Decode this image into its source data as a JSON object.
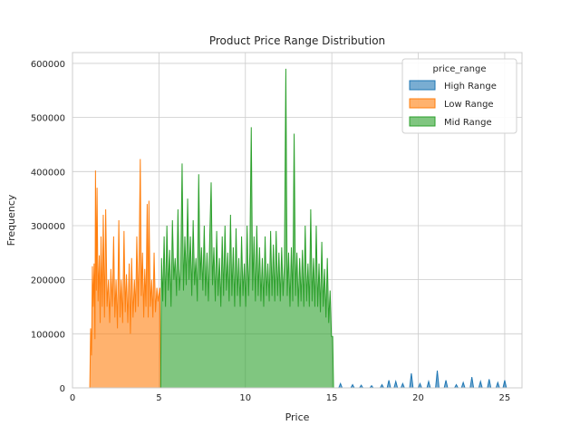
{
  "chart_data": {
    "type": "area",
    "title": "Product Price Range Distribution",
    "xlabel": "Price",
    "ylabel": "Frequency",
    "xlim": [
      0,
      26
    ],
    "ylim": [
      0,
      620000
    ],
    "x_ticks": [
      0,
      5,
      10,
      15,
      20,
      25
    ],
    "y_ticks": [
      0,
      100000,
      200000,
      300000,
      400000,
      500000,
      600000
    ],
    "x_tick_labels": [
      "0",
      "5",
      "10",
      "15",
      "20",
      "25"
    ],
    "y_tick_labels": [
      "0",
      "100000",
      "200000",
      "300000",
      "400000",
      "500000",
      "600000"
    ],
    "grid": true,
    "legend": {
      "title": "price_range",
      "position": "top-right",
      "entries": [
        "High Range",
        "Low Range",
        "Mid Range"
      ]
    },
    "series": [
      {
        "name": "Low Range",
        "color": "#ff7f0e",
        "points": [
          [
            1.0,
            0
          ],
          [
            1.05,
            110000
          ],
          [
            1.1,
            60000
          ],
          [
            1.15,
            225000
          ],
          [
            1.2,
            150000
          ],
          [
            1.25,
            230000
          ],
          [
            1.3,
            90000
          ],
          [
            1.33,
            402000
          ],
          [
            1.38,
            180000
          ],
          [
            1.42,
            370000
          ],
          [
            1.48,
            160000
          ],
          [
            1.55,
            245000
          ],
          [
            1.6,
            120000
          ],
          [
            1.65,
            280000
          ],
          [
            1.72,
            150000
          ],
          [
            1.78,
            320000
          ],
          [
            1.85,
            130000
          ],
          [
            1.92,
            330000
          ],
          [
            2.0,
            150000
          ],
          [
            2.08,
            200000
          ],
          [
            2.15,
            120000
          ],
          [
            2.22,
            220000
          ],
          [
            2.3,
            150000
          ],
          [
            2.38,
            280000
          ],
          [
            2.45,
            130000
          ],
          [
            2.52,
            200000
          ],
          [
            2.6,
            110000
          ],
          [
            2.68,
            310000
          ],
          [
            2.75,
            130000
          ],
          [
            2.82,
            200000
          ],
          [
            2.9,
            120000
          ],
          [
            2.98,
            290000
          ],
          [
            3.05,
            140000
          ],
          [
            3.12,
            210000
          ],
          [
            3.2,
            120000
          ],
          [
            3.28,
            230000
          ],
          [
            3.35,
            100000
          ],
          [
            3.42,
            240000
          ],
          [
            3.5,
            130000
          ],
          [
            3.58,
            200000
          ],
          [
            3.65,
            140000
          ],
          [
            3.72,
            280000
          ],
          [
            3.8,
            150000
          ],
          [
            3.86,
            260000
          ],
          [
            3.92,
            423000
          ],
          [
            3.98,
            170000
          ],
          [
            4.05,
            250000
          ],
          [
            4.12,
            130000
          ],
          [
            4.18,
            220000
          ],
          [
            4.25,
            150000
          ],
          [
            4.32,
            340000
          ],
          [
            4.38,
            130000
          ],
          [
            4.42,
            346000
          ],
          [
            4.5,
            150000
          ],
          [
            4.58,
            200000
          ],
          [
            4.65,
            130000
          ],
          [
            4.72,
            250000
          ],
          [
            4.8,
            140000
          ],
          [
            4.88,
            185000
          ],
          [
            4.95,
            160000
          ],
          [
            5.05,
            185000
          ],
          [
            5.1,
            0
          ]
        ]
      },
      {
        "name": "Mid Range",
        "color": "#2ca02c",
        "points": [
          [
            5.1,
            0
          ],
          [
            5.15,
            240000
          ],
          [
            5.22,
            160000
          ],
          [
            5.3,
            280000
          ],
          [
            5.38,
            150000
          ],
          [
            5.46,
            300000
          ],
          [
            5.54,
            180000
          ],
          [
            5.62,
            255000
          ],
          [
            5.7,
            150000
          ],
          [
            5.78,
            310000
          ],
          [
            5.86,
            200000
          ],
          [
            5.94,
            240000
          ],
          [
            6.02,
            170000
          ],
          [
            6.1,
            330000
          ],
          [
            6.18,
            180000
          ],
          [
            6.26,
            220000
          ],
          [
            6.34,
            415000
          ],
          [
            6.42,
            180000
          ],
          [
            6.5,
            280000
          ],
          [
            6.58,
            190000
          ],
          [
            6.66,
            350000
          ],
          [
            6.74,
            200000
          ],
          [
            6.82,
            280000
          ],
          [
            6.9,
            170000
          ],
          [
            6.98,
            310000
          ],
          [
            7.06,
            190000
          ],
          [
            7.14,
            240000
          ],
          [
            7.22,
            160000
          ],
          [
            7.3,
            395000
          ],
          [
            7.38,
            200000
          ],
          [
            7.46,
            260000
          ],
          [
            7.54,
            180000
          ],
          [
            7.62,
            300000
          ],
          [
            7.7,
            170000
          ],
          [
            7.78,
            250000
          ],
          [
            7.86,
            160000
          ],
          [
            7.94,
            280000
          ],
          [
            8.02,
            380000
          ],
          [
            8.1,
            190000
          ],
          [
            8.18,
            260000
          ],
          [
            8.26,
            160000
          ],
          [
            8.34,
            290000
          ],
          [
            8.42,
            170000
          ],
          [
            8.5,
            240000
          ],
          [
            8.58,
            150000
          ],
          [
            8.66,
            280000
          ],
          [
            8.74,
            170000
          ],
          [
            8.82,
            300000
          ],
          [
            8.9,
            180000
          ],
          [
            8.98,
            250000
          ],
          [
            9.06,
            160000
          ],
          [
            9.14,
            320000
          ],
          [
            9.22,
            170000
          ],
          [
            9.3,
            260000
          ],
          [
            9.38,
            150000
          ],
          [
            9.46,
            295000
          ],
          [
            9.54,
            170000
          ],
          [
            9.62,
            240000
          ],
          [
            9.7,
            150000
          ],
          [
            9.78,
            280000
          ],
          [
            9.86,
            170000
          ],
          [
            9.94,
            230000
          ],
          [
            10.02,
            150000
          ],
          [
            10.1,
            300000
          ],
          [
            10.18,
            170000
          ],
          [
            10.26,
            250000
          ],
          [
            10.34,
            482000
          ],
          [
            10.42,
            180000
          ],
          [
            10.5,
            280000
          ],
          [
            10.58,
            160000
          ],
          [
            10.66,
            300000
          ],
          [
            10.74,
            170000
          ],
          [
            10.82,
            260000
          ],
          [
            10.9,
            160000
          ],
          [
            10.98,
            240000
          ],
          [
            11.06,
            150000
          ],
          [
            11.14,
            280000
          ],
          [
            11.22,
            170000
          ],
          [
            11.3,
            230000
          ],
          [
            11.38,
            160000
          ],
          [
            11.46,
            290000
          ],
          [
            11.54,
            170000
          ],
          [
            11.62,
            265000
          ],
          [
            11.7,
            160000
          ],
          [
            11.78,
            290000
          ],
          [
            11.86,
            170000
          ],
          [
            11.94,
            250000
          ],
          [
            12.02,
            160000
          ],
          [
            12.1,
            260000
          ],
          [
            12.18,
            170000
          ],
          [
            12.26,
            230000
          ],
          [
            12.34,
            590000
          ],
          [
            12.42,
            170000
          ],
          [
            12.5,
            250000
          ],
          [
            12.58,
            150000
          ],
          [
            12.66,
            260000
          ],
          [
            12.74,
            160000
          ],
          [
            12.82,
            470000
          ],
          [
            12.9,
            170000
          ],
          [
            12.98,
            250000
          ],
          [
            13.06,
            150000
          ],
          [
            13.14,
            240000
          ],
          [
            13.22,
            160000
          ],
          [
            13.3,
            255000
          ],
          [
            13.38,
            150000
          ],
          [
            13.46,
            300000
          ],
          [
            13.54,
            160000
          ],
          [
            13.62,
            230000
          ],
          [
            13.7,
            150000
          ],
          [
            13.78,
            330000
          ],
          [
            13.86,
            160000
          ],
          [
            13.94,
            240000
          ],
          [
            14.02,
            150000
          ],
          [
            14.1,
            300000
          ],
          [
            14.18,
            150000
          ],
          [
            14.26,
            230000
          ],
          [
            14.34,
            140000
          ],
          [
            14.42,
            270000
          ],
          [
            14.5,
            150000
          ],
          [
            14.58,
            220000
          ],
          [
            14.66,
            130000
          ],
          [
            14.74,
            240000
          ],
          [
            14.82,
            120000
          ],
          [
            14.9,
            180000
          ],
          [
            14.98,
            95000
          ],
          [
            15.05,
            95000
          ],
          [
            15.1,
            0
          ]
        ]
      },
      {
        "name": "High Range",
        "color": "#1f77b4",
        "points": [
          [
            15.1,
            0
          ],
          [
            15.4,
            0
          ],
          [
            15.5,
            8000
          ],
          [
            15.6,
            0
          ],
          [
            16.1,
            0
          ],
          [
            16.2,
            6000
          ],
          [
            16.3,
            0
          ],
          [
            16.6,
            0
          ],
          [
            16.7,
            5000
          ],
          [
            16.8,
            0
          ],
          [
            17.2,
            0
          ],
          [
            17.3,
            4000
          ],
          [
            17.4,
            0
          ],
          [
            17.8,
            0
          ],
          [
            17.9,
            6000
          ],
          [
            18.0,
            0
          ],
          [
            18.2,
            0
          ],
          [
            18.3,
            14000
          ],
          [
            18.4,
            0
          ],
          [
            18.6,
            0
          ],
          [
            18.7,
            12000
          ],
          [
            18.8,
            0
          ],
          [
            19.0,
            0
          ],
          [
            19.1,
            8000
          ],
          [
            19.2,
            0
          ],
          [
            19.5,
            0
          ],
          [
            19.6,
            27000
          ],
          [
            19.7,
            0
          ],
          [
            20.0,
            0
          ],
          [
            20.1,
            8000
          ],
          [
            20.2,
            0
          ],
          [
            20.5,
            0
          ],
          [
            20.6,
            12000
          ],
          [
            20.7,
            0
          ],
          [
            21.0,
            0
          ],
          [
            21.1,
            32000
          ],
          [
            21.2,
            0
          ],
          [
            21.5,
            0
          ],
          [
            21.6,
            14000
          ],
          [
            21.7,
            0
          ],
          [
            22.1,
            0
          ],
          [
            22.2,
            6000
          ],
          [
            22.3,
            0
          ],
          [
            22.5,
            0
          ],
          [
            22.6,
            10000
          ],
          [
            22.7,
            0
          ],
          [
            23.0,
            0
          ],
          [
            23.1,
            20000
          ],
          [
            23.2,
            0
          ],
          [
            23.5,
            0
          ],
          [
            23.6,
            12000
          ],
          [
            23.7,
            0
          ],
          [
            24.0,
            0
          ],
          [
            24.1,
            16000
          ],
          [
            24.2,
            0
          ],
          [
            24.5,
            0
          ],
          [
            24.6,
            10000
          ],
          [
            24.7,
            0
          ],
          [
            24.9,
            0
          ],
          [
            25.0,
            14000
          ],
          [
            25.1,
            0
          ]
        ]
      }
    ]
  }
}
